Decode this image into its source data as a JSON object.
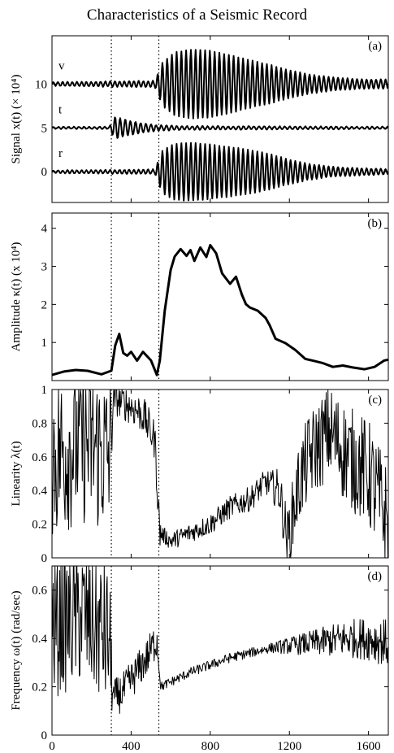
{
  "figure": {
    "title": "Characteristics of a Seismic Record"
  },
  "chart_data": [
    {
      "type": "line",
      "panel_label": "(a)",
      "ylabel": "Signal x(t) (× 10⁴)",
      "xlim": [
        0,
        1700
      ],
      "ylim": [
        -3.5,
        15.5
      ],
      "yticks": [
        0,
        5,
        10
      ],
      "xticks": [
        0,
        400,
        800,
        1200,
        1600
      ],
      "show_xticklabels": false,
      "markers_x": [
        300,
        540
      ],
      "series": [
        {
          "name": "v",
          "offset": 10,
          "envelope": [
            [
              0,
              0.2
            ],
            [
              200,
              0.25
            ],
            [
              300,
              0.3
            ],
            [
              520,
              0.35
            ],
            [
              560,
              2.5
            ],
            [
              620,
              3.6
            ],
            [
              700,
              3.9
            ],
            [
              800,
              3.8
            ],
            [
              900,
              3.3
            ],
            [
              1000,
              2.7
            ],
            [
              1100,
              2.2
            ],
            [
              1200,
              1.6
            ],
            [
              1300,
              1.1
            ],
            [
              1400,
              0.8
            ],
            [
              1550,
              0.55
            ],
            [
              1700,
              0.5
            ]
          ],
          "period": 24
        },
        {
          "name": "t",
          "offset": 5,
          "envelope": [
            [
              0,
              0.1
            ],
            [
              290,
              0.12
            ],
            [
              320,
              1.3
            ],
            [
              360,
              1.0
            ],
            [
              420,
              0.7
            ],
            [
              480,
              0.45
            ],
            [
              540,
              0.3
            ],
            [
              700,
              0.2
            ],
            [
              1700,
              0.12
            ]
          ],
          "period": 26
        },
        {
          "name": "r",
          "offset": 0,
          "envelope": [
            [
              0,
              0.15
            ],
            [
              520,
              0.25
            ],
            [
              560,
              2.5
            ],
            [
              620,
              3.2
            ],
            [
              700,
              3.3
            ],
            [
              800,
              3.1
            ],
            [
              900,
              2.8
            ],
            [
              1000,
              2.5
            ],
            [
              1100,
              2.0
            ],
            [
              1200,
              1.4
            ],
            [
              1300,
              0.9
            ],
            [
              1400,
              0.6
            ],
            [
              1550,
              0.4
            ],
            [
              1700,
              0.3
            ]
          ],
          "period": 24
        }
      ]
    },
    {
      "type": "line",
      "panel_label": "(b)",
      "ylabel": "Amplitude κ(t) (x 10⁴)",
      "xlim": [
        0,
        1700
      ],
      "ylim": [
        0,
        4.4
      ],
      "yticks": [
        1,
        2,
        3,
        4
      ],
      "xticks": [
        0,
        400,
        800,
        1200,
        1600
      ],
      "show_xticklabels": false,
      "markers_x": [
        300,
        540
      ],
      "series": [
        {
          "name": "amplitude",
          "points": [
            [
              0,
              0.15
            ],
            [
              60,
              0.2
            ],
            [
              120,
              0.3
            ],
            [
              180,
              0.2
            ],
            [
              250,
              0.15
            ],
            [
              300,
              0.3
            ],
            [
              320,
              0.9
            ],
            [
              340,
              1.2
            ],
            [
              360,
              0.75
            ],
            [
              380,
              0.6
            ],
            [
              400,
              0.75
            ],
            [
              430,
              0.55
            ],
            [
              460,
              0.7
            ],
            [
              500,
              0.55
            ],
            [
              530,
              0.2
            ],
            [
              545,
              0.5
            ],
            [
              570,
              1.8
            ],
            [
              600,
              2.9
            ],
            [
              620,
              3.3
            ],
            [
              650,
              3.5
            ],
            [
              680,
              3.3
            ],
            [
              700,
              3.4
            ],
            [
              720,
              3.2
            ],
            [
              750,
              3.5
            ],
            [
              780,
              3.2
            ],
            [
              800,
              3.6
            ],
            [
              830,
              3.3
            ],
            [
              860,
              2.8
            ],
            [
              900,
              2.6
            ],
            [
              930,
              2.7
            ],
            [
              960,
              2.2
            ],
            [
              980,
              2.0
            ],
            [
              1000,
              1.9
            ],
            [
              1040,
              1.85
            ],
            [
              1080,
              1.7
            ],
            [
              1100,
              1.4
            ],
            [
              1130,
              1.1
            ],
            [
              1180,
              1.0
            ],
            [
              1230,
              0.85
            ],
            [
              1280,
              0.6
            ],
            [
              1320,
              0.5
            ],
            [
              1370,
              0.45
            ],
            [
              1420,
              0.35
            ],
            [
              1470,
              0.35
            ],
            [
              1520,
              0.3
            ],
            [
              1580,
              0.35
            ],
            [
              1630,
              0.3
            ],
            [
              1680,
              0.5
            ],
            [
              1700,
              0.55
            ]
          ]
        }
      ]
    },
    {
      "type": "line",
      "panel_label": "(c)",
      "ylabel": "Linearity λ(t)",
      "xlim": [
        0,
        1700
      ],
      "ylim": [
        0,
        1
      ],
      "yticks": [
        0,
        0.2,
        0.4,
        0.6,
        0.8,
        1
      ],
      "xticks": [
        0,
        400,
        800,
        1200,
        1600
      ],
      "show_xticklabels": false,
      "markers_x": [
        300,
        540
      ],
      "series": [
        {
          "name": "linearity",
          "base": [
            [
              0,
              0.6
            ],
            [
              150,
              0.7
            ],
            [
              290,
              0.6
            ],
            [
              310,
              0.95
            ],
            [
              400,
              0.9
            ],
            [
              460,
              0.85
            ],
            [
              520,
              0.7
            ],
            [
              545,
              0.15
            ],
            [
              600,
              0.1
            ],
            [
              700,
              0.15
            ],
            [
              800,
              0.2
            ],
            [
              900,
              0.3
            ],
            [
              1000,
              0.35
            ],
            [
              1080,
              0.45
            ],
            [
              1150,
              0.4
            ],
            [
              1190,
              0.1
            ],
            [
              1250,
              0.45
            ],
            [
              1300,
              0.6
            ],
            [
              1400,
              0.75
            ],
            [
              1500,
              0.6
            ],
            [
              1600,
              0.5
            ],
            [
              1700,
              0.2
            ]
          ],
          "noise": [
            [
              0,
              0.5
            ],
            [
              290,
              0.5
            ],
            [
              310,
              0.1
            ],
            [
              540,
              0.12
            ],
            [
              560,
              0.05
            ],
            [
              1100,
              0.08
            ],
            [
              1250,
              0.25
            ],
            [
              1700,
              0.35
            ]
          ]
        }
      ]
    },
    {
      "type": "line",
      "panel_label": "(d)",
      "ylabel": "Frequency ω(t) (rad/sec)",
      "xlim": [
        0,
        1700
      ],
      "ylim": [
        0,
        0.7
      ],
      "yticks": [
        0,
        0.2,
        0.4,
        0.6
      ],
      "xticks": [
        0,
        400,
        800,
        1200,
        1600
      ],
      "xticklabels": [
        "0",
        "400",
        "800",
        "1200",
        "1600"
      ],
      "show_xticklabels": true,
      "markers_x": [
        300,
        540
      ],
      "series": [
        {
          "name": "frequency",
          "base": [
            [
              0,
              0.45
            ],
            [
              150,
              0.5
            ],
            [
              290,
              0.4
            ],
            [
              310,
              0.15
            ],
            [
              360,
              0.18
            ],
            [
              420,
              0.25
            ],
            [
              480,
              0.32
            ],
            [
              530,
              0.4
            ],
            [
              550,
              0.2
            ],
            [
              600,
              0.22
            ],
            [
              700,
              0.26
            ],
            [
              800,
              0.29
            ],
            [
              900,
              0.32
            ],
            [
              1000,
              0.34
            ],
            [
              1100,
              0.36
            ],
            [
              1200,
              0.37
            ],
            [
              1300,
              0.38
            ],
            [
              1400,
              0.39
            ],
            [
              1500,
              0.4
            ],
            [
              1600,
              0.4
            ],
            [
              1700,
              0.38
            ]
          ],
          "noise": [
            [
              0,
              0.3
            ],
            [
              290,
              0.3
            ],
            [
              310,
              0.08
            ],
            [
              530,
              0.08
            ],
            [
              550,
              0.02
            ],
            [
              1100,
              0.02
            ],
            [
              1300,
              0.05
            ],
            [
              1500,
              0.08
            ],
            [
              1700,
              0.1
            ]
          ]
        }
      ]
    }
  ]
}
